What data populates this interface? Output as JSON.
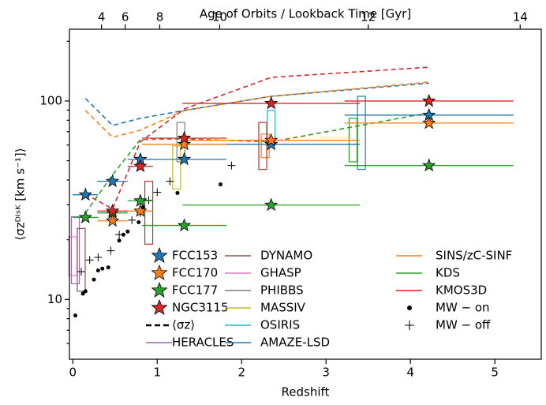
{
  "chart_data": {
    "type": "scatter",
    "title": "Age of Orbits / Lookback Time [Gyr]",
    "x_label": "Redshift",
    "y_label": "⟨σzᴰᴵˢᴷ [km s⁻¹]⟩",
    "xlim": [
      -0.04,
      5.55
    ],
    "xticks": [
      0,
      1,
      2,
      3,
      4,
      5
    ],
    "ylim": [
      5,
      230
    ],
    "log_y": true,
    "yticks": [
      10,
      100
    ],
    "yminorticks": [
      6,
      7,
      8,
      9,
      20,
      30,
      40,
      50,
      60,
      70,
      80,
      90,
      200
    ],
    "x2ticks": [
      4,
      6,
      8,
      10,
      12,
      14
    ],
    "x2ticks_z": [
      0.34,
      0.62,
      1.03,
      1.74,
      3.5,
      5.3
    ],
    "z": [
      0.15,
      0.47,
      0.8,
      1.32,
      2.35,
      4.22
    ],
    "xerr": [
      0.15,
      0.18,
      0.15,
      0.5,
      1.05,
      1.0
    ],
    "mean_label": "⟨σz⟩",
    "galaxies": [
      {
        "name": "FCC153",
        "color": "#1f77b4",
        "values": [
          33.7,
          39.4,
          50.8,
          50.8,
          60.5,
          84.9
        ],
        "mean_values": [
          103,
          75.3,
          81.8,
          89.6,
          105.6,
          123
        ]
      },
      {
        "name": "FCC170",
        "color": "#ff7f0e",
        "values": [
          null,
          24.9,
          27.9,
          60.5,
          63.4,
          77.4
        ],
        "mean_values": [
          89.6,
          65.7,
          71.3,
          89.6,
          105.6,
          124.5
        ]
      },
      {
        "name": "FCC177",
        "color": "#2ca02c",
        "values": [
          25.9,
          27.3,
          31.4,
          23.6,
          29.9,
          47.3
        ],
        "mean_values": [
          27.3,
          42.4,
          63.9,
          64.5,
          62.2,
          87.2
        ]
      },
      {
        "name": "NGC3115",
        "color": "#d62728",
        "values": [
          null,
          27.9,
          46.9,
          65,
          97.3,
          100
        ],
        "mean_values": [
          34,
          28.6,
          62.2,
          91.2,
          131.5,
          148
        ]
      }
    ],
    "literature": [
      {
        "name": "HERACLES",
        "color": "#9467bd",
        "x": [
          0.03
        ],
        "lo": [
          12.0
        ],
        "hi": [
          26.1
        ]
      },
      {
        "name": "DYNAMO",
        "color": "#8c564b",
        "x": [
          0.1
        ],
        "lo": [
          11.0
        ],
        "hi": [
          22.8
        ]
      },
      {
        "name": "GHASP",
        "color": "#e377c2",
        "x": [
          0.0
        ],
        "lo": [
          13.2
        ],
        "hi": [
          20.7
        ]
      },
      {
        "name": "PHIBBS",
        "color": "#7f7f7f",
        "x": [
          1.28
        ],
        "lo": [
          49.4
        ],
        "hi": [
          78
        ]
      },
      {
        "name": "MASSIV",
        "color": "#bcbd22",
        "x": [
          1.23
        ],
        "lo": [
          36
        ],
        "hi": [
          59.4
        ]
      },
      {
        "name": "OSIRIS",
        "color": "#17becf",
        "x": [
          2.35
        ],
        "lo": [
          62
        ],
        "hi": [
          89.6
        ]
      },
      {
        "name": "AMAZE-LSD",
        "color": "#1f77b4",
        "x": [
          3.42
        ],
        "lo": [
          45.2
        ],
        "hi": [
          105.6
        ]
      },
      {
        "name": "SINS/zC-SINF",
        "color": "#ff7f0e",
        "x": [
          2.28
        ],
        "lo": [
          51.8
        ],
        "hi": [
          68.1
        ]
      },
      {
        "name": "KDS",
        "color": "#2ca02c",
        "x": [
          3.32
        ],
        "lo": [
          49.4
        ],
        "hi": [
          81.8
        ]
      },
      {
        "name": "KMOS3D",
        "color": "#d62728",
        "x": [
          0.9,
          2.25
        ],
        "lo": [
          19,
          45.2
        ],
        "hi": [
          39.4,
          78
        ]
      }
    ],
    "mw_on": {
      "name": "MW − on",
      "x": [
        0.03,
        0.12,
        0.15,
        0.25,
        0.3,
        0.35,
        0.42,
        0.55,
        0.6,
        0.65,
        0.78,
        0.83,
        1.24,
        1.75
      ],
      "values": [
        8.3,
        10.7,
        11,
        12.6,
        14.0,
        14.3,
        14.5,
        19.8,
        21.2,
        22,
        24.5,
        29.1,
        34.4,
        38.0
      ]
    },
    "mw_off": {
      "name": "MW − off",
      "x": [
        0.1,
        0.2,
        0.3,
        0.45,
        0.55,
        0.7,
        0.8,
        0.9,
        1.0,
        1.15,
        1.88
      ],
      "values": [
        13.8,
        15.8,
        16.3,
        17.6,
        21.2,
        25.1,
        27.3,
        31.6,
        34.7,
        39.4,
        47.3
      ]
    }
  }
}
